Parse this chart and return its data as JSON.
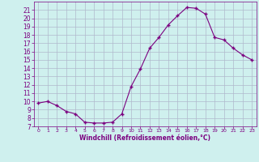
{
  "x": [
    0,
    1,
    2,
    3,
    4,
    5,
    6,
    7,
    8,
    9,
    10,
    11,
    12,
    13,
    14,
    15,
    16,
    17,
    18,
    19,
    20,
    21,
    22,
    23
  ],
  "y": [
    9.8,
    10.0,
    9.5,
    8.8,
    8.5,
    7.5,
    7.4,
    7.4,
    7.5,
    8.5,
    11.8,
    13.9,
    16.4,
    17.7,
    19.2,
    20.3,
    21.3,
    21.2,
    20.5,
    17.7,
    17.4,
    16.4,
    15.6,
    15.0
  ],
  "line_color": "#7b0080",
  "marker": "+",
  "marker_size": 3,
  "bg_color": "#cff0ee",
  "grid_color": "#b0b8cc",
  "xlabel": "Windchill (Refroidissement éolien,°C)",
  "xlabel_color": "#7b0080",
  "tick_color": "#7b0080",
  "ylim": [
    7,
    22
  ],
  "xlim": [
    -0.5,
    23.5
  ],
  "yticks": [
    7,
    8,
    9,
    10,
    11,
    12,
    13,
    14,
    15,
    16,
    17,
    18,
    19,
    20,
    21
  ],
  "xticks": [
    0,
    1,
    2,
    3,
    4,
    5,
    6,
    7,
    8,
    9,
    10,
    11,
    12,
    13,
    14,
    15,
    16,
    17,
    18,
    19,
    20,
    21,
    22,
    23
  ],
  "xtick_labels": [
    "0",
    "1",
    "2",
    "3",
    "4",
    "5",
    "6",
    "7",
    "8",
    "9",
    "10",
    "11",
    "12",
    "13",
    "14",
    "15",
    "16",
    "17",
    "18",
    "19",
    "20",
    "21",
    "22",
    "23"
  ]
}
